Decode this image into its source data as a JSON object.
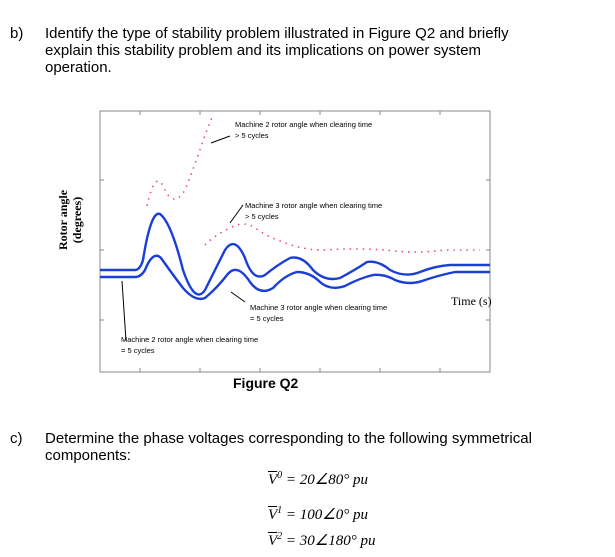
{
  "question_b": {
    "label": "b)",
    "text": [
      "Identify the type of stability problem illustrated in Figure Q2 and briefly",
      "explain this stability problem and its implications on power system",
      "operation."
    ]
  },
  "figure": {
    "caption": "Figure Q2",
    "ylabel_line1": "Rotor angle",
    "ylabel_line2": "(degrees)",
    "xlabel": "Time (s)",
    "annotations": {
      "m2_gt5_line1": "Machine 2 rotor angle when clearing time",
      "m2_gt5_line2": "> 5 cycles",
      "m3_gt5_line1": "Machine 3 rotor angle when clearing time",
      "m3_gt5_line2": "> 5 cycles",
      "m3_eq5_line1": "Machine 3 rotor angle when clearing time",
      "m3_eq5_line2": "= 5 cycles",
      "m2_eq5_line1": "Machine 2 rotor angle when clearing time",
      "m2_eq5_line2": "= 5 cycles"
    },
    "colors": {
      "stable": "#1a3fd6",
      "unstable": "#e0507a",
      "frame": "#888888"
    }
  },
  "question_c": {
    "label": "c)",
    "text": [
      "Determine the phase voltages corresponding to the following symmetrical",
      "components:"
    ],
    "equations": [
      {
        "sym": "V",
        "sup": "0",
        "rhs": "= 20∠80° pu"
      },
      {
        "sym": "V",
        "sup": "1",
        "rhs": "= 100∠0° pu"
      },
      {
        "sym": "V",
        "sup": "2",
        "rhs": "= 30∠180° pu"
      }
    ]
  }
}
